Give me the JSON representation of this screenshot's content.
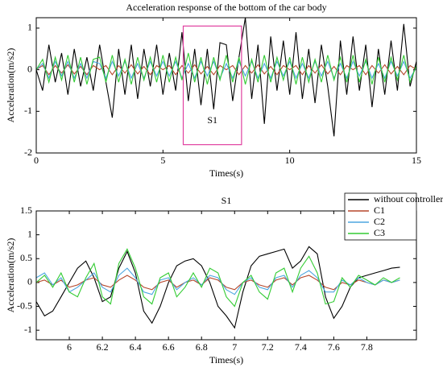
{
  "chart_data": [
    {
      "type": "line",
      "title": "Acceleration response of the bottom of the car body",
      "xlabel": "Times(s)",
      "ylabel": "Acceleration(m/s2)",
      "x": [
        0,
        0.25,
        0.5,
        0.75,
        1,
        1.25,
        1.5,
        1.75,
        2,
        2.25,
        2.5,
        2.75,
        3,
        3.25,
        3.5,
        3.75,
        4,
        4.25,
        4.5,
        4.75,
        5,
        5.25,
        5.5,
        5.75,
        6,
        6.25,
        6.5,
        6.75,
        7,
        7.25,
        7.5,
        7.75,
        8,
        8.25,
        8.5,
        8.75,
        9,
        9.25,
        9.5,
        9.75,
        10,
        10.25,
        10.5,
        10.75,
        11,
        11.25,
        11.5,
        11.75,
        12,
        12.25,
        12.5,
        12.75,
        13,
        13.25,
        13.5,
        13.75,
        14,
        14.25,
        14.5,
        14.75,
        15
      ],
      "series": [
        {
          "color": "#000000",
          "values": [
            0,
            -0.5,
            0.6,
            -0.3,
            0.4,
            -0.6,
            0.5,
            -0.4,
            0.3,
            -0.5,
            0.6,
            -0.3,
            -1.15,
            0.5,
            -0.6,
            0.6,
            -0.7,
            0.5,
            -0.4,
            0.6,
            -0.6,
            0.4,
            -0.5,
            0.9,
            -0.75,
            0.5,
            -0.85,
            0.5,
            -0.95,
            0.65,
            0.6,
            -0.75,
            0.3,
            1.25,
            -0.7,
            0.6,
            -1.3,
            0.8,
            -0.5,
            0.7,
            -0.6,
            0.9,
            -0.7,
            0.5,
            -0.8,
            0.6,
            -0.4,
            -1.6,
            0.7,
            -0.6,
            0.8,
            -0.5,
            0.6,
            -0.9,
            0.5,
            -0.6,
            0.7,
            -0.5,
            1.1,
            -0.4,
            0.2
          ]
        },
        {
          "color": "#b5472b",
          "values": [
            0,
            0.1,
            -0.12,
            0.1,
            -0.08,
            0.12,
            -0.1,
            0.08,
            -0.12,
            0.1,
            0,
            0.1,
            -0.12,
            0.1,
            -0.08,
            0.12,
            -0.1,
            0.08,
            -0.12,
            0.1,
            0,
            0.1,
            -0.12,
            0.1,
            -0.08,
            0.12,
            -0.1,
            0.08,
            -0.12,
            0.1,
            0,
            0.1,
            -0.12,
            0.1,
            -0.08,
            0.12,
            -0.1,
            0.08,
            -0.12,
            0.1,
            0,
            0.1,
            -0.12,
            0.1,
            -0.08,
            0.12,
            -0.1,
            0.08,
            -0.12,
            0.1,
            0,
            0.1,
            -0.12,
            0.1,
            -0.08,
            0.12,
            -0.1,
            0.08,
            -0.12,
            0.1,
            0
          ]
        },
        {
          "color": "#4da6e0",
          "values": [
            0,
            0.15,
            -0.2,
            0.2,
            -0.15,
            0.2,
            -0.2,
            0.15,
            -0.2,
            0.2,
            0.15,
            -0.2,
            0.2,
            -0.15,
            0.2,
            -0.2,
            0.15,
            -0.2,
            0.2,
            -0.15,
            0.2,
            -0.15,
            0.2,
            -0.2,
            0.15,
            -0.2,
            0.2,
            -0.15,
            0.2,
            -0.2,
            0.15,
            -0.2,
            0.2,
            -0.15,
            0.2,
            -0.2,
            0.15,
            -0.2,
            0.2,
            -0.15,
            0.2,
            -0.2,
            0.15,
            -0.2,
            0.2,
            -0.15,
            0.2,
            -0.2,
            0.15,
            -0.2,
            0.2,
            -0.15,
            0.2,
            -0.2,
            0.15,
            -0.2,
            0.2,
            -0.15,
            0.2,
            -0.2,
            0.05
          ]
        },
        {
          "color": "#33cc33",
          "values": [
            0,
            0.25,
            -0.3,
            0.3,
            -0.25,
            0.35,
            -0.3,
            0.3,
            -0.35,
            0.25,
            0.3,
            -0.3,
            0.35,
            -0.3,
            0.25,
            -0.35,
            0.3,
            -0.25,
            0.3,
            -0.3,
            0.35,
            -0.3,
            0.3,
            -0.25,
            0.4,
            -0.3,
            0.3,
            -0.35,
            0.3,
            -0.25,
            0.35,
            -0.3,
            0.3,
            -0.35,
            0.25,
            -0.3,
            0.35,
            -0.3,
            0.3,
            -0.25,
            0.3,
            -0.35,
            0.3,
            -0.3,
            0.25,
            -0.3,
            0.35,
            -0.25,
            0.3,
            -0.3,
            0.35,
            -0.3,
            0.25,
            -0.35,
            0.3,
            -0.3,
            0.3,
            -0.25,
            0.35,
            -0.3,
            0.1
          ]
        }
      ],
      "xlim": [
        0,
        15
      ],
      "xticks": [
        0,
        5,
        10,
        15
      ],
      "ylim": [
        -2,
        1.25
      ],
      "yticks": [
        -2,
        -1,
        0,
        1
      ],
      "annotation": {
        "text": "S1",
        "x": [
          5.8,
          8.1
        ],
        "y": [
          -1.8,
          1.05
        ],
        "color": "#e040a0"
      }
    },
    {
      "type": "line",
      "title": "S1",
      "xlabel": "Times(s)",
      "ylabel": "Acceleration(m/s2)",
      "x": [
        5.8,
        5.85,
        5.9,
        5.95,
        6,
        6.05,
        6.1,
        6.15,
        6.2,
        6.25,
        6.3,
        6.35,
        6.4,
        6.45,
        6.5,
        6.55,
        6.6,
        6.65,
        6.7,
        6.75,
        6.8,
        6.85,
        6.9,
        6.95,
        7,
        7.05,
        7.1,
        7.15,
        7.2,
        7.25,
        7.3,
        7.35,
        7.4,
        7.45,
        7.5,
        7.55,
        7.6,
        7.65,
        7.7,
        7.75,
        7.8,
        7.85,
        7.9,
        7.95,
        8
      ],
      "series": [
        {
          "name": "without controller",
          "color": "#000000",
          "values": [
            -0.4,
            -0.7,
            -0.6,
            -0.3,
            0,
            0.3,
            0.45,
            0.1,
            -0.4,
            -0.3,
            0.3,
            0.65,
            0.2,
            -0.6,
            -0.85,
            -0.5,
            0,
            0.35,
            0.45,
            0.5,
            0.35,
            0,
            -0.5,
            -0.7,
            -0.95,
            -0.2,
            0.35,
            0.55,
            0.6,
            0.65,
            0.7,
            0.3,
            0.45,
            0.75,
            0.6,
            -0.3,
            -0.75,
            -0.5,
            -0.1,
            0.1,
            0.15,
            0.2,
            0.25,
            0.3,
            0.32
          ]
        },
        {
          "name": "C1",
          "color": "#b5472b",
          "values": [
            0,
            0.05,
            -0.05,
            0.05,
            -0.1,
            -0.05,
            0.05,
            0.1,
            -0.05,
            -0.1,
            0.05,
            0.15,
            0.05,
            -0.1,
            -0.15,
            0,
            0.05,
            -0.1,
            0,
            0.05,
            -0.05,
            0.1,
            0.05,
            -0.1,
            -0.15,
            0,
            0.05,
            -0.05,
            -0.1,
            0.05,
            0.1,
            -0.05,
            0.1,
            0.15,
            0.05,
            -0.1,
            -0.15,
            0,
            -0.05,
            0.05,
            0,
            -0.05,
            0.05,
            0,
            0.05
          ]
        },
        {
          "name": "C2",
          "color": "#4da6e0",
          "values": [
            0.1,
            0.2,
            -0.05,
            0.1,
            -0.2,
            -0.1,
            0.05,
            0.2,
            -0.1,
            -0.2,
            0.15,
            0.3,
            0.1,
            -0.2,
            -0.25,
            0.05,
            0.1,
            -0.15,
            0,
            0.1,
            -0.05,
            0.15,
            0.1,
            -0.15,
            -0.25,
            0,
            0.1,
            -0.1,
            -0.15,
            0.1,
            0.15,
            -0.1,
            0.15,
            0.25,
            0.1,
            -0.2,
            -0.2,
            0.05,
            -0.05,
            0.1,
            0,
            -0.05,
            0.05,
            0,
            0.05
          ]
        },
        {
          "name": "C3",
          "color": "#33cc33",
          "values": [
            0,
            0.15,
            -0.1,
            0.2,
            -0.2,
            -0.3,
            0.1,
            0.4,
            -0.3,
            -0.45,
            0.4,
            0.7,
            0.3,
            -0.3,
            -0.45,
            0.1,
            0.2,
            -0.3,
            -0.1,
            0.2,
            -0.1,
            0.3,
            0.2,
            -0.3,
            -0.5,
            0,
            0.15,
            -0.2,
            -0.35,
            0.2,
            0.3,
            -0.2,
            0.3,
            0.55,
            0.2,
            -0.45,
            -0.4,
            0.1,
            -0.1,
            0.15,
            0.05,
            -0.05,
            0.1,
            0,
            0.1
          ]
        }
      ],
      "xlim": [
        5.8,
        8.1
      ],
      "xticks": [
        6,
        6.2,
        6.4,
        6.6,
        6.8,
        7,
        7.2,
        7.4,
        7.6,
        7.8
      ],
      "ylim": [
        -1.2,
        1.5
      ],
      "yticks": [
        -1,
        -0.5,
        0,
        0.5,
        1,
        1.5
      ],
      "legend": "upper right"
    }
  ]
}
